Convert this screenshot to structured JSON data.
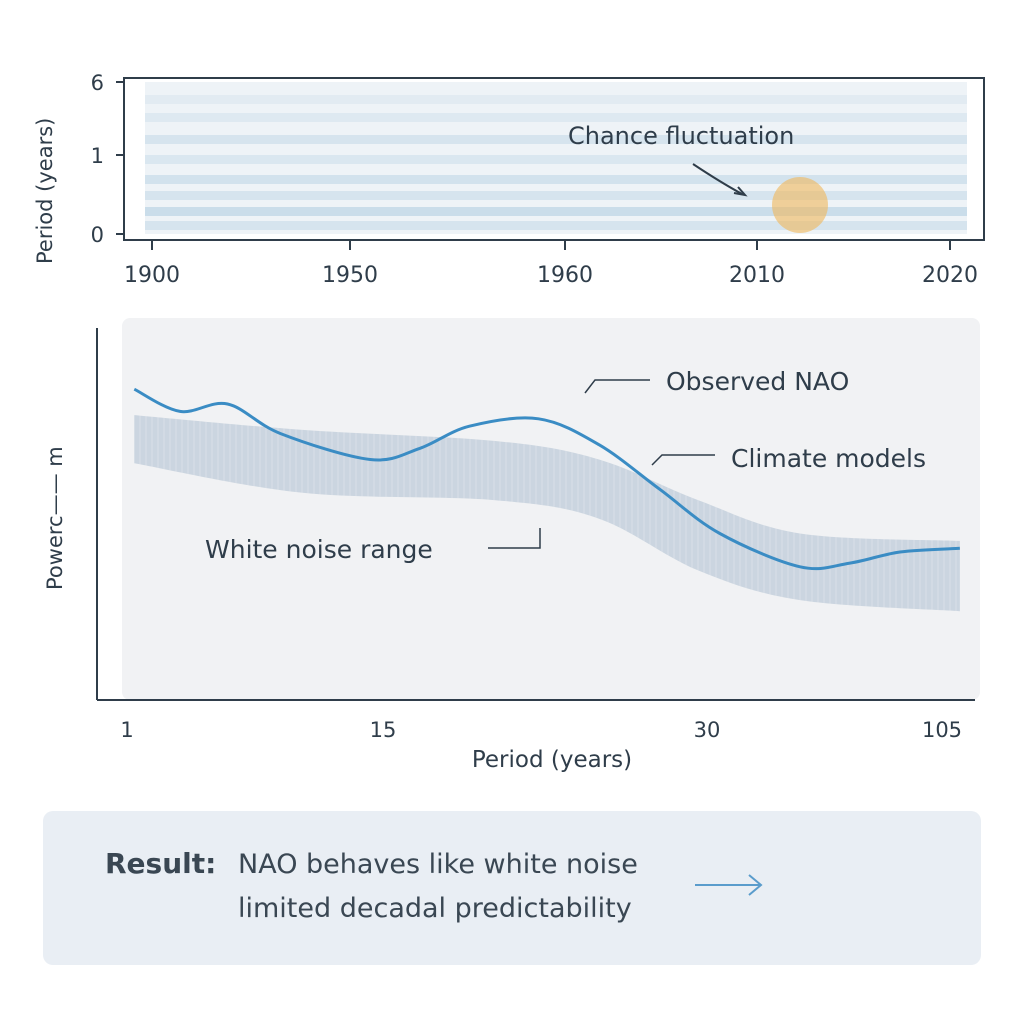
{
  "top_chart": {
    "ylabel": "Period (years)",
    "y_ticks": [
      "6",
      "1",
      "0"
    ],
    "x_ticks": [
      "1900",
      "1950",
      "1960",
      "2010",
      "2020"
    ],
    "annotation": "Chance fluctuation",
    "highlight_color": "#f0b85a",
    "heat_color": "#9ec3da"
  },
  "chart_data": {
    "type": "line",
    "xlabel": "Period (years)",
    "ylabel": "Powerc—— m",
    "x_ticks": [
      "1",
      "15",
      "30",
      "105"
    ],
    "series": [
      {
        "name": "Observed NAO",
        "color": "#3a8cc4",
        "x": [
          1.4,
          3.9,
          6.5,
          9.4,
          14.3,
          16.7,
          19.0,
          22.2,
          25.0,
          27.8,
          34.1,
          59.7,
          75.6,
          91.6,
          110.7
        ],
        "y": [
          8.4,
          7.8,
          8.0,
          7.2,
          6.5,
          6.8,
          7.4,
          7.6,
          6.9,
          5.7,
          4.5,
          3.6,
          3.7,
          4.0,
          4.1
        ]
      }
    ],
    "band": {
      "name": "White noise range",
      "color": "#c4d0dc",
      "x": [
        1.4,
        10.6,
        20.2,
        25.0,
        29.6,
        59.7,
        110.7
      ],
      "upper": [
        7.7,
        7.3,
        7.0,
        6.5,
        5.4,
        4.5,
        4.3
      ],
      "lower": [
        6.4,
        5.6,
        5.4,
        4.9,
        3.5,
        2.7,
        2.4
      ]
    },
    "annotations": [
      "Observed NAO",
      "Climate models",
      "White noise range"
    ]
  },
  "result": {
    "label": "Result:",
    "line1": "NAO behaves like white noise",
    "line2": "limited decadal predictability",
    "arrow_color": "#5a9ccc"
  }
}
